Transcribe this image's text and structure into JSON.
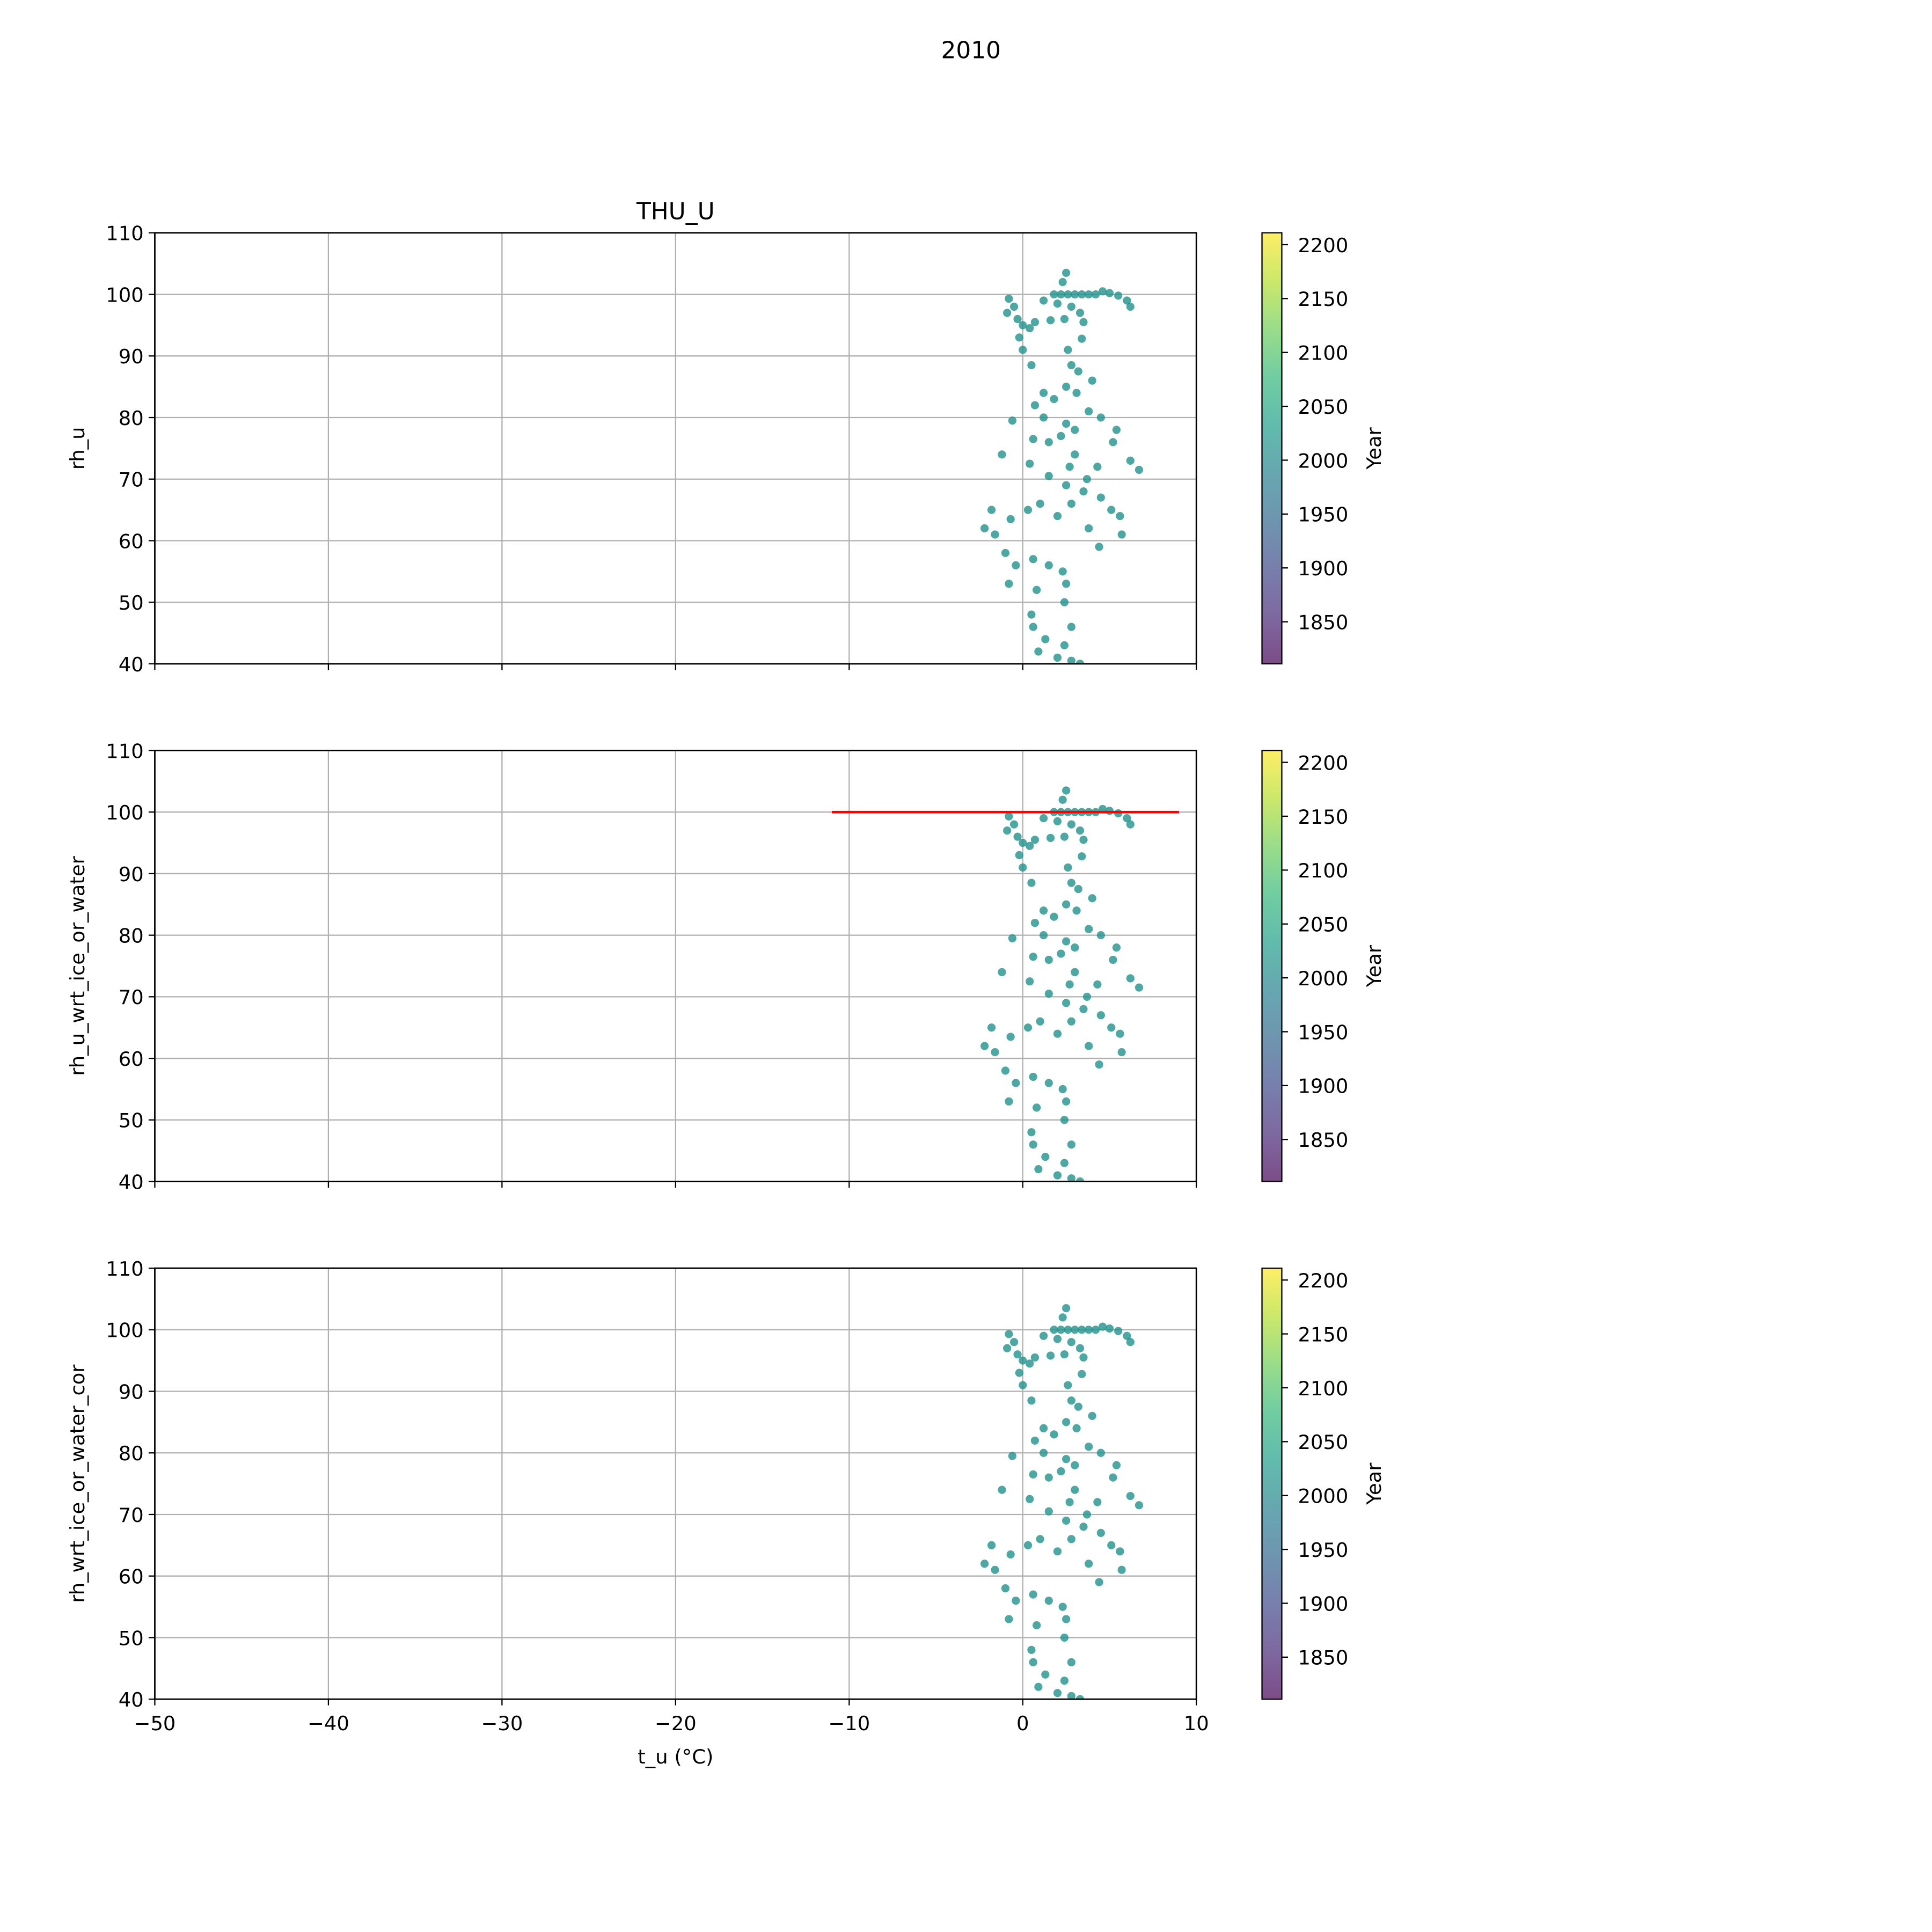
{
  "figure_title": "2010",
  "chart_data": [
    {
      "type": "scatter",
      "title": "THU_U",
      "y_label": "rh_u",
      "x": [
        2.5,
        2.3,
        1.8,
        2.2,
        2.6,
        3,
        3.4,
        3.8,
        4.2,
        4.6,
        5,
        5.5,
        6,
        6.2,
        1.2,
        2,
        2.8,
        3.3,
        2.4,
        3.5,
        1.6,
        -0.8,
        -0.5,
        -0.9,
        -0.3,
        0,
        0.4,
        0.7,
        -0.2,
        0,
        0.5,
        3.4,
        2.6,
        2.8,
        3.2,
        4,
        2.5,
        3.1,
        1.2,
        1.8,
        0.7,
        1.2,
        -0.6,
        3.8,
        4.5,
        2.5,
        3,
        2.2,
        1.5,
        0.6,
        -1.2,
        5.4,
        5.2,
        6.7,
        6.2,
        4.3,
        3,
        2.7,
        3.7,
        2.5,
        1.5,
        0.4,
        -1.8,
        -2.2,
        -1.6,
        -0.7,
        0.3,
        1,
        2,
        2.8,
        3.5,
        4.5,
        5.1,
        5.6,
        5.7,
        4.4,
        3.8,
        -1,
        -0.4,
        0.6,
        1.5,
        2.3,
        2.5,
        -0.8,
        0.8,
        2.4,
        0.5,
        0.6,
        1.3,
        2.8,
        2.4,
        0.9,
        2,
        2.8,
        3.3
      ],
      "y": [
        103.5,
        102,
        100,
        100,
        100,
        100,
        100,
        100,
        100,
        100.5,
        100.2,
        99.8,
        99,
        98,
        99,
        98.5,
        98,
        97,
        96,
        95.5,
        95.8,
        99.3,
        98,
        97,
        96,
        95,
        94.5,
        95.5,
        93,
        91,
        88.5,
        92.8,
        91,
        88.5,
        87.5,
        86,
        85,
        84,
        84,
        83,
        82,
        80,
        79.5,
        81,
        80,
        79,
        78,
        77,
        76,
        76.5,
        74,
        78,
        76,
        71.5,
        73,
        72,
        74,
        72,
        70,
        69,
        70.5,
        72.5,
        65,
        62,
        61,
        63.5,
        65,
        66,
        64,
        66,
        68,
        67,
        65,
        64,
        61,
        59,
        62,
        58,
        56,
        57,
        56,
        55,
        53,
        53,
        52,
        50,
        48,
        46,
        44,
        46,
        43,
        42,
        41,
        40.5,
        40
      ],
      "color": "#21918c",
      "alpha": 0.8,
      "xlim": [
        -50,
        10
      ],
      "xticks": [
        -50,
        -40,
        -30,
        -20,
        -10,
        0,
        10
      ],
      "xtick_labels": false,
      "ylim": [
        40,
        110
      ],
      "yticks": [
        40,
        50,
        60,
        70,
        80,
        90,
        100,
        110
      ],
      "grid": true,
      "colorbar": {
        "label": "Year",
        "lim": [
          1811,
          2211
        ],
        "ticks": [
          1850,
          1900,
          1950,
          2000,
          2050,
          2100,
          2150,
          2200
        ],
        "colors": [
          "#440154",
          "#482878",
          "#3e4989",
          "#31688e",
          "#26828e",
          "#1f9e89",
          "#35b779",
          "#6ece58",
          "#b5de2b",
          "#fde725"
        ],
        "alpha": 0.7
      }
    },
    {
      "type": "scatter",
      "y_label": "rh_u_wrt_ice_or_water",
      "x": [
        2.5,
        2.3,
        1.8,
        2.2,
        2.6,
        3,
        3.4,
        3.8,
        4.2,
        4.6,
        5,
        5.5,
        6,
        6.2,
        1.2,
        2,
        2.8,
        3.3,
        2.4,
        3.5,
        1.6,
        -0.8,
        -0.5,
        -0.9,
        -0.3,
        0,
        0.4,
        0.7,
        -0.2,
        0,
        0.5,
        3.4,
        2.6,
        2.8,
        3.2,
        4,
        2.5,
        3.1,
        1.2,
        1.8,
        0.7,
        1.2,
        -0.6,
        3.8,
        4.5,
        2.5,
        3,
        2.2,
        1.5,
        0.6,
        -1.2,
        5.4,
        5.2,
        6.7,
        6.2,
        4.3,
        3,
        2.7,
        3.7,
        2.5,
        1.5,
        0.4,
        -1.8,
        -2.2,
        -1.6,
        -0.7,
        0.3,
        1,
        2,
        2.8,
        3.5,
        4.5,
        5.1,
        5.6,
        5.7,
        4.4,
        3.8,
        -1,
        -0.4,
        0.6,
        1.5,
        2.3,
        2.5,
        -0.8,
        0.8,
        2.4,
        0.5,
        0.6,
        1.3,
        2.8,
        2.4,
        0.9,
        2,
        2.8,
        3.3
      ],
      "y": [
        103.5,
        102,
        100,
        100,
        100,
        100,
        100,
        100,
        100,
        100.5,
        100.2,
        99.8,
        99,
        98,
        99,
        98.5,
        98,
        97,
        96,
        95.5,
        95.8,
        99.3,
        98,
        97,
        96,
        95,
        94.5,
        95.5,
        93,
        91,
        88.5,
        92.8,
        91,
        88.5,
        87.5,
        86,
        85,
        84,
        84,
        83,
        82,
        80,
        79.5,
        81,
        80,
        79,
        78,
        77,
        76,
        76.5,
        74,
        78,
        76,
        71.5,
        73,
        72,
        74,
        72,
        70,
        69,
        70.5,
        72.5,
        65,
        62,
        61,
        63.5,
        65,
        66,
        64,
        66,
        68,
        67,
        65,
        64,
        61,
        59,
        62,
        58,
        56,
        57,
        56,
        55,
        53,
        53,
        52,
        50,
        48,
        46,
        44,
        46,
        43,
        42,
        41,
        40.5,
        40
      ],
      "color": "#21918c",
      "alpha": 0.8,
      "lines": [
        {
          "x": [
            -11,
            9
          ],
          "y": [
            100,
            100
          ],
          "color": "#ff0000"
        }
      ],
      "xlim": [
        -50,
        10
      ],
      "xticks": [
        -50,
        -40,
        -30,
        -20,
        -10,
        0,
        10
      ],
      "xtick_labels": false,
      "ylim": [
        40,
        110
      ],
      "yticks": [
        40,
        50,
        60,
        70,
        80,
        90,
        100,
        110
      ],
      "grid": true,
      "colorbar": {
        "label": "Year",
        "lim": [
          1811,
          2211
        ],
        "ticks": [
          1850,
          1900,
          1950,
          2000,
          2050,
          2100,
          2150,
          2200
        ],
        "colors": [
          "#440154",
          "#482878",
          "#3e4989",
          "#31688e",
          "#26828e",
          "#1f9e89",
          "#35b779",
          "#6ece58",
          "#b5de2b",
          "#fde725"
        ],
        "alpha": 0.7
      }
    },
    {
      "type": "scatter",
      "y_label": "rh_wrt_ice_or_water_cor",
      "x_label": "t_u (°C)",
      "x": [
        2.5,
        2.3,
        1.8,
        2.2,
        2.6,
        3,
        3.4,
        3.8,
        4.2,
        4.6,
        5,
        5.5,
        6,
        6.2,
        1.2,
        2,
        2.8,
        3.3,
        2.4,
        3.5,
        1.6,
        -0.8,
        -0.5,
        -0.9,
        -0.3,
        0,
        0.4,
        0.7,
        -0.2,
        0,
        0.5,
        3.4,
        2.6,
        2.8,
        3.2,
        4,
        2.5,
        3.1,
        1.2,
        1.8,
        0.7,
        1.2,
        -0.6,
        3.8,
        4.5,
        2.5,
        3,
        2.2,
        1.5,
        0.6,
        -1.2,
        5.4,
        5.2,
        6.7,
        6.2,
        4.3,
        3,
        2.7,
        3.7,
        2.5,
        1.5,
        0.4,
        -1.8,
        -2.2,
        -1.6,
        -0.7,
        0.3,
        1,
        2,
        2.8,
        3.5,
        4.5,
        5.1,
        5.6,
        5.7,
        4.4,
        3.8,
        -1,
        -0.4,
        0.6,
        1.5,
        2.3,
        2.5,
        -0.8,
        0.8,
        2.4,
        0.5,
        0.6,
        1.3,
        2.8,
        2.4,
        0.9,
        2,
        2.8,
        3.3
      ],
      "y": [
        103.5,
        102,
        100,
        100,
        100,
        100,
        100,
        100,
        100,
        100.5,
        100.2,
        99.8,
        99,
        98,
        99,
        98.5,
        98,
        97,
        96,
        95.5,
        95.8,
        99.3,
        98,
        97,
        96,
        95,
        94.5,
        95.5,
        93,
        91,
        88.5,
        92.8,
        91,
        88.5,
        87.5,
        86,
        85,
        84,
        84,
        83,
        82,
        80,
        79.5,
        81,
        80,
        79,
        78,
        77,
        76,
        76.5,
        74,
        78,
        76,
        71.5,
        73,
        72,
        74,
        72,
        70,
        69,
        70.5,
        72.5,
        65,
        62,
        61,
        63.5,
        65,
        66,
        64,
        66,
        68,
        67,
        65,
        64,
        61,
        59,
        62,
        58,
        56,
        57,
        56,
        55,
        53,
        53,
        52,
        50,
        48,
        46,
        44,
        46,
        43,
        42,
        41,
        40.5,
        40
      ],
      "color": "#21918c",
      "alpha": 0.8,
      "xlim": [
        -50,
        10
      ],
      "xticks": [
        {
          "value": -50,
          "label": "−50"
        },
        {
          "value": -40,
          "label": "−40"
        },
        {
          "value": -30,
          "label": "−30"
        },
        {
          "value": -20,
          "label": "−20"
        },
        {
          "value": -10,
          "label": "−10"
        },
        0,
        10
      ],
      "ylim": [
        40,
        110
      ],
      "yticks": [
        40,
        50,
        60,
        70,
        80,
        90,
        100,
        110
      ],
      "grid": true,
      "colorbar": {
        "label": "Year",
        "lim": [
          1811,
          2211
        ],
        "ticks": [
          1850,
          1900,
          1950,
          2000,
          2050,
          2100,
          2150,
          2200
        ],
        "colors": [
          "#440154",
          "#482878",
          "#3e4989",
          "#31688e",
          "#26828e",
          "#1f9e89",
          "#35b779",
          "#6ece58",
          "#b5de2b",
          "#fde725"
        ],
        "alpha": 0.7
      }
    }
  ]
}
